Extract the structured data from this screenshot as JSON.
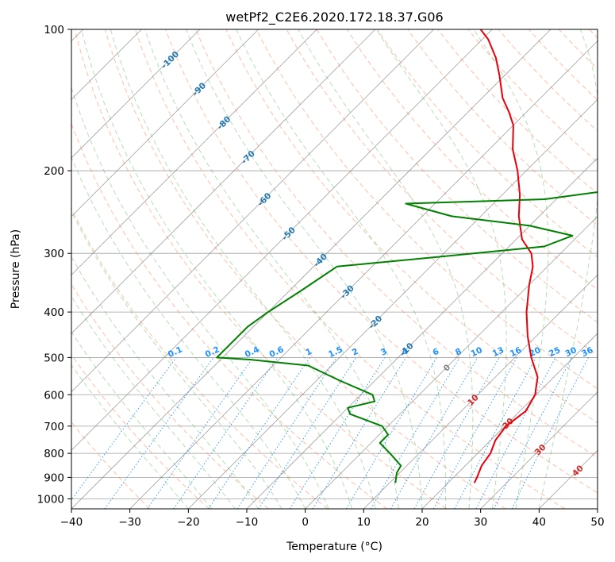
{
  "chart_data": {
    "type": "line",
    "title": "wetPf2_C2E6.2020.172.18.37.G06",
    "xlabel": "Temperature (°C)",
    "ylabel": "Pressure (hPa)",
    "xlim": [
      -40,
      50
    ],
    "ylim": [
      1050,
      100
    ],
    "y_scale": "log",
    "grid": true,
    "x_ticks": [
      -40,
      -30,
      -20,
      -10,
      0,
      10,
      20,
      30,
      40,
      50
    ],
    "y_ticks": [
      1000,
      900,
      800,
      700,
      600,
      500,
      400,
      300,
      200,
      100
    ],
    "skew_reference": "isotherms skewed at 45°",
    "series": [
      {
        "role": "temperature",
        "color": "#e8000b",
        "points": [
          {
            "p": 925,
            "t": 24.5
          },
          {
            "p": 900,
            "t": 24.0
          },
          {
            "p": 850,
            "t": 22.8
          },
          {
            "p": 800,
            "t": 22.2
          },
          {
            "p": 750,
            "t": 20.8
          },
          {
            "p": 700,
            "t": 20.2
          },
          {
            "p": 650,
            "t": 21.0
          },
          {
            "p": 600,
            "t": 19.8
          },
          {
            "p": 550,
            "t": 17.2
          },
          {
            "p": 500,
            "t": 12.8
          },
          {
            "p": 450,
            "t": 8.5
          },
          {
            "p": 400,
            "t": 4.2
          },
          {
            "p": 350,
            "t": 0.0
          },
          {
            "p": 320,
            "t": -2.5
          },
          {
            "p": 300,
            "t": -5.0
          },
          {
            "p": 280,
            "t": -9.0
          },
          {
            "p": 250,
            "t": -13.5
          },
          {
            "p": 225,
            "t": -17.0
          },
          {
            "p": 200,
            "t": -21.5
          },
          {
            "p": 180,
            "t": -26.0
          },
          {
            "p": 160,
            "t": -30.0
          },
          {
            "p": 150,
            "t": -33.0
          },
          {
            "p": 140,
            "t": -36.5
          },
          {
            "p": 125,
            "t": -41.0
          },
          {
            "p": 115,
            "t": -44.5
          },
          {
            "p": 105,
            "t": -49.0
          },
          {
            "p": 100,
            "t": -52.0
          }
        ]
      },
      {
        "role": "dewpoint",
        "color": "#008000",
        "points": [
          {
            "p": 925,
            "t": 11.0
          },
          {
            "p": 880,
            "t": 9.5
          },
          {
            "p": 850,
            "t": 9.0
          },
          {
            "p": 800,
            "t": 5.0
          },
          {
            "p": 760,
            "t": 1.5
          },
          {
            "p": 730,
            "t": 1.5
          },
          {
            "p": 700,
            "t": -1.0
          },
          {
            "p": 660,
            "t": -8.5
          },
          {
            "p": 640,
            "t": -10.0
          },
          {
            "p": 620,
            "t": -6.5
          },
          {
            "p": 600,
            "t": -8.0
          },
          {
            "p": 560,
            "t": -16.0
          },
          {
            "p": 520,
            "t": -24.0
          },
          {
            "p": 505,
            "t": -35.0
          },
          {
            "p": 500,
            "t": -41.0
          },
          {
            "p": 430,
            "t": -41.0
          },
          {
            "p": 400,
            "t": -40.0
          },
          {
            "p": 360,
            "t": -38.0
          },
          {
            "p": 320,
            "t": -36.0
          },
          {
            "p": 305,
            "t": -20.0
          },
          {
            "p": 290,
            "t": -4.0
          },
          {
            "p": 275,
            "t": -1.0
          },
          {
            "p": 262,
            "t": -10.0
          },
          {
            "p": 250,
            "t": -25.0
          },
          {
            "p": 235,
            "t": -35.0
          },
          {
            "p": 230,
            "t": -12.0
          },
          {
            "p": 220,
            "t": -2.0
          },
          {
            "p": 210,
            "t": -1.0
          },
          {
            "p": 200,
            "t": -2.5
          },
          {
            "p": 195,
            "t": -8.0
          },
          {
            "p": 188,
            "t": 1.0
          },
          {
            "p": 175,
            "t": 15.0
          },
          {
            "p": 165,
            "t": 15.0
          },
          {
            "p": 158,
            "t": 5.0
          },
          {
            "p": 152,
            "t": -4.0
          },
          {
            "p": 145,
            "t": -9.0
          },
          {
            "p": 140,
            "t": 1.0
          },
          {
            "p": 132,
            "t": 7.0
          },
          {
            "p": 120,
            "t": 14.0
          },
          {
            "p": 112,
            "t": 24.0
          },
          {
            "p": 105,
            "t": 32.0
          },
          {
            "p": 100,
            "t": 37.0
          }
        ]
      }
    ],
    "overlays": {
      "isotherm_color": "#808080",
      "dry_adiabat_color": "#ff7f50",
      "moist_adiabat_color": "#2ca02c",
      "mixing_ratio_color": "#1e90ff",
      "label_color_dark": "#1f77b4",
      "label_color_warm": "#d62728",
      "label_color_zero": "#888888",
      "mixing_ratio_labels": [
        "0.1",
        "0.2",
        "0.4",
        "0.6",
        "1",
        "1.5",
        "2",
        "3",
        "4",
        "6",
        "8",
        "10",
        "13",
        "16",
        "20",
        "25",
        "30",
        "36"
      ],
      "mixing_ratio_values": [
        0.1,
        0.2,
        0.4,
        0.6,
        1,
        1.5,
        2,
        3,
        4,
        6,
        8,
        10,
        13,
        16,
        20,
        25,
        30,
        36
      ],
      "mixing_ratio_label_pressure": 500,
      "isotherm_labels": [
        "-100",
        "-90",
        "-80",
        "-70",
        "-60",
        "-50",
        "-40",
        "-30",
        "-20",
        "-10",
        "0",
        "10",
        "20",
        "30",
        "40"
      ],
      "isotherm_label_values": [
        -100,
        -90,
        -80,
        -70,
        -60,
        -50,
        -40,
        -30,
        -20,
        -10,
        0,
        10,
        20,
        30,
        40
      ],
      "isotherm_label_pressures": [
        116,
        134,
        158,
        187,
        230,
        272,
        310,
        362,
        420,
        480,
        525,
        615,
        690,
        785,
        870
      ]
    }
  }
}
